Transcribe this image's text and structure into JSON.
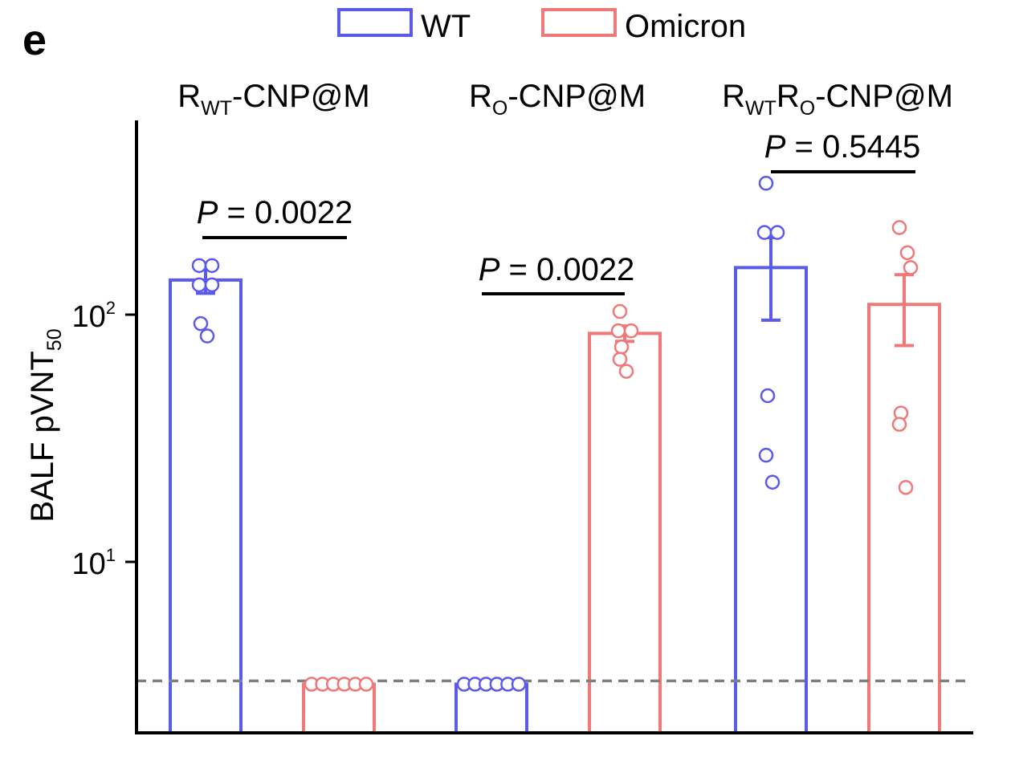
{
  "panel_label": "e",
  "colors": {
    "wt": "#5a5aeb",
    "omicron": "#f07878",
    "axis": "#000000",
    "threshold": "#808080"
  },
  "legend": [
    {
      "label": "WT",
      "color": "#5a5aeb"
    },
    {
      "label": "Omicron",
      "color": "#f07878"
    }
  ],
  "groups": [
    {
      "main": "R",
      "sub1": "WT",
      "mid": "",
      "sub2": "",
      "rest": "-CNP@M"
    },
    {
      "main": "R",
      "sub1": "O",
      "mid": "",
      "sub2": "",
      "rest": "-CNP@M"
    },
    {
      "main": "R",
      "sub1": "WT",
      "mid": "R",
      "sub2": "O",
      "rest": "-CNP@M"
    }
  ],
  "pvalues": [
    {
      "italic": "P",
      "text": " = 0.0022"
    },
    {
      "italic": "P",
      "text": " = 0.0022"
    },
    {
      "italic": "P",
      "text": " = 0.5445"
    }
  ],
  "y_axis": {
    "label_main": "BALF pVNT",
    "label_sub": "50",
    "ticks": [
      {
        "base": "10",
        "exp": "1"
      },
      {
        "base": "10",
        "exp": "2"
      }
    ]
  },
  "chart_data": {
    "type": "bar",
    "scale": "log",
    "ylim": [
      1.9,
      900
    ],
    "detection_limit": 3.3,
    "grid": false,
    "legend_placement": "top-center",
    "categories": [
      "RWT-CNP@M",
      "RO-CNP@M",
      "RWTRO-CNP@M"
    ],
    "series": [
      {
        "name": "WT",
        "values": [
          138,
          3.2,
          155
        ],
        "error_low": [
          122,
          3.2,
          95
        ],
        "error_high": [
          152,
          3.2,
          205
        ],
        "points": [
          [
            158,
            158,
            132,
            132,
            92,
            82
          ],
          [
            3.2,
            3.2,
            3.2,
            3.2,
            3.2,
            3.2
          ],
          [
            340,
            215,
            215,
            47,
            27,
            21
          ]
        ]
      },
      {
        "name": "Omicron",
        "values": [
          3.2,
          84,
          110
        ],
        "error_low": [
          3.2,
          78,
          75
        ],
        "error_high": [
          3.2,
          90,
          145
        ],
        "points": [
          [
            3.2,
            3.2,
            3.2,
            3.2,
            3.2,
            3.2
          ],
          [
            103,
            86,
            86,
            74,
            66,
            59
          ],
          [
            225,
            178,
            155,
            40,
            36,
            20
          ]
        ]
      }
    ]
  }
}
